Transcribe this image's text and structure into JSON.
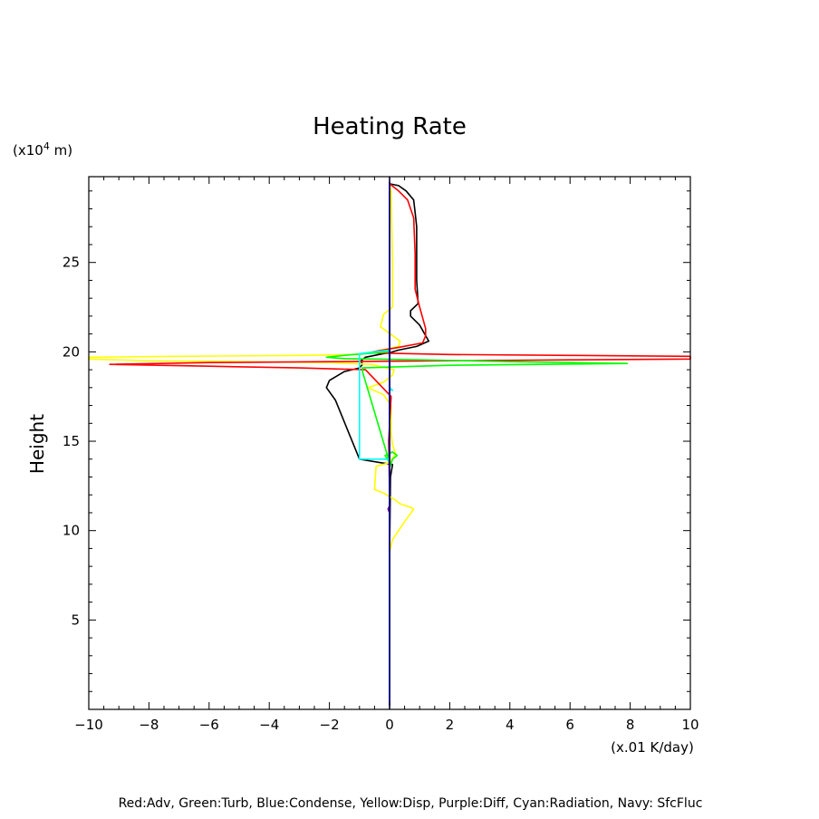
{
  "chart_data": {
    "type": "line",
    "title": "Heating Rate",
    "ylabel": "Height",
    "xunit": "(x.01 K/day)",
    "yunit": "(x10",
    "yunit_exp": "4",
    "yunit_tail": " m)",
    "legend_note": "Red:Adv, Green:Turb, Blue:Condense, Yellow:Disp, Purple:Diff, Cyan:Radiation, Navy: SfcFluc",
    "xlim": [
      -10,
      10
    ],
    "ylim": [
      0,
      29.8
    ],
    "x_ticks": [
      -10,
      -8,
      -6,
      -4,
      -2,
      0,
      2,
      4,
      6,
      8,
      10
    ],
    "x_tick_labels": [
      "−10",
      "−8",
      "−6",
      "−4",
      "−2",
      "0",
      "2",
      "4",
      "6",
      "8",
      "10"
    ],
    "y_ticks": [
      5,
      10,
      15,
      20,
      25
    ],
    "y_tick_labels": [
      "5",
      "10",
      "15",
      "20",
      "25"
    ],
    "series": [
      {
        "color": "#000000",
        "x": [
          0,
          0,
          0.03,
          0.1,
          -0.3,
          -1.0,
          -1.8,
          -2.1,
          -2.0,
          -1.5,
          -1.0,
          -0.9,
          -0.95,
          -0.8,
          -0.5,
          -0.2,
          0,
          0.3,
          0.9,
          1.3,
          1.0,
          0.7,
          0.7,
          0.95,
          0.9,
          0.9,
          0.85,
          0.8,
          0.55,
          0.3,
          0
        ],
        "y": [
          0.2,
          8.5,
          13.0,
          13.7,
          13.8,
          14.0,
          17.3,
          18.0,
          18.4,
          18.9,
          19.1,
          19.3,
          19.5,
          19.7,
          19.8,
          19.9,
          19.95,
          20.1,
          20.3,
          20.6,
          21.5,
          22.0,
          22.3,
          22.7,
          24.0,
          27.0,
          27.8,
          28.5,
          29.0,
          29.3,
          29.4
        ]
      },
      {
        "color": "#ffff00",
        "x": [
          0,
          0,
          0.1,
          0.5,
          0.8,
          0.7,
          0.35,
          0.2,
          0.0,
          -0.2,
          -0.5,
          -0.45,
          0,
          0.2,
          0.1,
          0.05,
          0.05,
          -0.2,
          -0.6,
          -0.7,
          -0.2,
          0.1,
          0.15,
          -0.6,
          -2,
          -5,
          -8,
          -10,
          -10,
          -7,
          -3,
          -1,
          0.3,
          0.35,
          -0.3,
          -0.2,
          0.1,
          0.1,
          0.05,
          0
        ],
        "y": [
          0.2,
          8.8,
          9.5,
          10.5,
          11.2,
          11.3,
          11.5,
          11.7,
          11.9,
          12.1,
          12.3,
          13.6,
          13.8,
          14.3,
          14.8,
          15.5,
          17.0,
          17.6,
          17.9,
          18.0,
          18.3,
          18.7,
          19.0,
          19.3,
          19.4,
          19.45,
          19.5,
          19.6,
          19.7,
          19.75,
          19.8,
          19.85,
          20.3,
          20.6,
          21.4,
          22.1,
          22.5,
          25.0,
          29.0,
          29.4
        ]
      },
      {
        "color": "#ff0000",
        "x": [
          0,
          0,
          -0.03,
          0.05,
          -0.8,
          -3,
          -6,
          -9.3,
          -6,
          -2,
          2,
          6,
          10,
          10,
          6,
          2,
          -0.7,
          -0.4,
          0.3,
          1.1,
          1.2,
          1.2,
          1.0,
          0.85,
          0.85,
          0.8,
          0.6,
          0.3,
          0
        ],
        "y": [
          0.2,
          12.0,
          15.0,
          17.5,
          19.0,
          19.1,
          19.2,
          19.3,
          19.4,
          19.45,
          19.5,
          19.55,
          19.6,
          19.75,
          19.8,
          19.85,
          19.95,
          20.05,
          20.25,
          20.5,
          20.9,
          21.3,
          22.5,
          23.5,
          25.5,
          27.5,
          28.5,
          29.0,
          29.4
        ]
      },
      {
        "color": "#00ff00",
        "x": [
          0,
          0,
          0.1,
          0.25,
          0.1,
          -0.15,
          0,
          -0.9,
          -0.9,
          2,
          5,
          7.9,
          4,
          1,
          -0.5,
          -1.5,
          -2.1,
          -1.2,
          0
        ],
        "y": [
          0.2,
          13.5,
          14.0,
          14.2,
          14.4,
          14.2,
          13.8,
          18.9,
          19.1,
          19.25,
          19.3,
          19.35,
          19.45,
          19.55,
          19.6,
          19.62,
          19.7,
          19.85,
          20.0
        ]
      },
      {
        "color": "#00ffff",
        "x": [
          0,
          0,
          0,
          -1.0,
          -1.0,
          0,
          0,
          0.1,
          0
        ],
        "y": [
          0.2,
          13.8,
          14.0,
          14.0,
          19.9,
          20.1,
          17.9,
          17.85,
          18.0
        ]
      },
      {
        "color": "#0000ff",
        "x": [
          0,
          0
        ],
        "y": [
          0.2,
          29.5
        ]
      },
      {
        "color": "#800080",
        "x": [
          0,
          0,
          -0.05,
          0,
          0
        ],
        "y": [
          0.2,
          11.0,
          11.2,
          11.4,
          29.5
        ]
      },
      {
        "color": "#000080",
        "x": [
          0,
          0
        ],
        "y": [
          0,
          29.8
        ]
      }
    ]
  }
}
